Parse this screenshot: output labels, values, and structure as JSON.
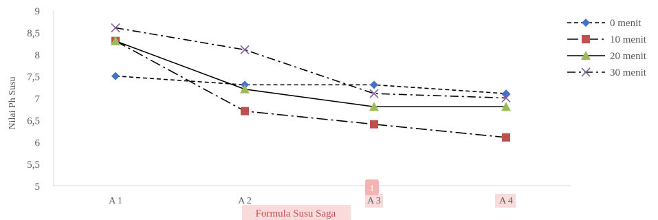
{
  "chart_data": {
    "type": "line",
    "title": "",
    "xlabel": "Formula Susu Saga",
    "ylabel": "Nilai Ph Susu",
    "categories": [
      "A 1",
      "A 2",
      "A 3",
      "A 4"
    ],
    "y_ticks": [
      "5",
      "5,5",
      "6",
      "6,5",
      "7",
      "7,5",
      "8",
      "8,5",
      "9"
    ],
    "ylim": [
      5,
      9
    ],
    "grid": false,
    "legend_position": "right",
    "series": [
      {
        "name": "0 menit",
        "values": [
          7.5,
          7.3,
          7.3,
          7.1
        ],
        "marker": "diamond",
        "color": "#4472C4",
        "dash": "short-dash"
      },
      {
        "name": "10 menit",
        "values": [
          8.3,
          6.7,
          6.4,
          6.1
        ],
        "marker": "square",
        "color": "#C0504D",
        "dash": "long-dash-dot"
      },
      {
        "name": "20 menit",
        "values": [
          8.3,
          7.2,
          6.8,
          6.8
        ],
        "marker": "triangle",
        "color": "#9BBB59",
        "dash": "solid"
      },
      {
        "name": "30 menit",
        "values": [
          8.6,
          8.1,
          7.1,
          7.0
        ],
        "marker": "x",
        "color": "#8064A2",
        "dash": "dash-dot"
      }
    ],
    "annotation": {
      "text": "1",
      "color": "#F4B4B4"
    },
    "highlight_color": "#FADBDB"
  }
}
